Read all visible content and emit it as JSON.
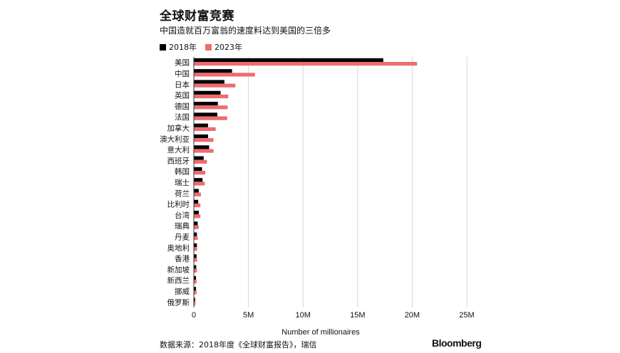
{
  "title": "全球财富竞赛",
  "subtitle": "中国造就百万富翁的速度料达到美国的三倍多",
  "legend": [
    {
      "label": "2018年",
      "color": "#000000"
    },
    {
      "label": "2023年",
      "color": "#ee6b6e"
    }
  ],
  "source": "数据来源：2018年度《全球财富报告》，瑞信",
  "brand": "Bloomberg",
  "chart_data": {
    "type": "bar",
    "orientation": "horizontal",
    "title": "全球财富竞赛",
    "xlabel": "Number of millionaires",
    "ylabel": "",
    "xlim": [
      0,
      25000000
    ],
    "x_ticks": [
      0,
      5000000,
      10000000,
      15000000,
      20000000,
      25000000
    ],
    "x_tick_labels": [
      "0",
      "5M",
      "10M",
      "15M",
      "20M",
      "25M"
    ],
    "categories": [
      "美国",
      "中国",
      "日本",
      "英国",
      "德国",
      "法国",
      "加拿大",
      "澳大利亚",
      "意大利",
      "西班牙",
      "韩国",
      "瑞士",
      "荷兰",
      "比利时",
      "台湾",
      "瑞典",
      "丹麦",
      "奥地利",
      "香港",
      "新加坡",
      "新西兰",
      "挪威",
      "俄罗斯"
    ],
    "series": [
      {
        "name": "2018年",
        "color": "#000000",
        "values": [
          17350000,
          3500000,
          2800000,
          2450000,
          2200000,
          2150000,
          1300000,
          1300000,
          1400000,
          900000,
          750000,
          800000,
          450000,
          400000,
          450000,
          350000,
          280000,
          280000,
          250000,
          220000,
          200000,
          200000,
          120000
        ]
      },
      {
        "name": "2023年",
        "color": "#ee6b6e",
        "values": [
          20450000,
          5600000,
          3800000,
          3150000,
          3100000,
          3050000,
          2000000,
          1800000,
          1800000,
          1200000,
          1050000,
          1000000,
          650000,
          600000,
          600000,
          450000,
          350000,
          300000,
          300000,
          280000,
          250000,
          250000,
          150000
        ]
      }
    ],
    "grid": true,
    "legend_position": "top-left"
  }
}
